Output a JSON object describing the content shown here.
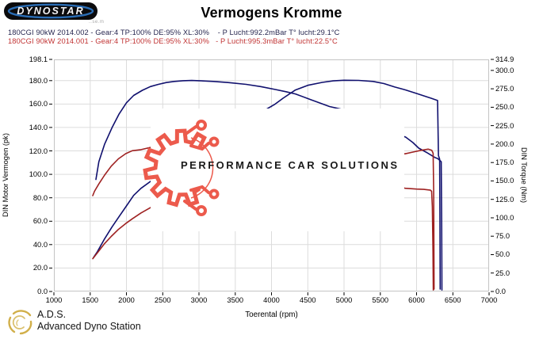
{
  "header": {
    "logo_text": "DYNOSTAR",
    "fine_print": "..se.m",
    "title": "Vermogens Kromme"
  },
  "legend": {
    "run1": "180CGI 90kW 2014.002 - Gear:4 TP:100% DE:95% XL:30%    - P Lucht:992.2mBar T° lucht:29.1°C",
    "run2": "180CGI 90kW 2014.001 - Gear:4 TP:100% DE:95% XL:30%   - P Lucht:995.3mBar T° lucht:22.5°C",
    "run1_color": "#26264f",
    "run2_color": "#c13434"
  },
  "watermark": {
    "text": "PERFORMANCE CAR SOLUTIONS",
    "gear_color": "#ec5a4c",
    "text_color": "#1a1a1a"
  },
  "footer": {
    "abbr": "A.D.S.",
    "name": "Advanced Dyno Station",
    "logo_color": "#c9a22b"
  },
  "chart_data": {
    "type": "line",
    "title": "Vermogens Kromme",
    "xlabel": "Toerental (rpm)",
    "ylabel_left": "DIN Motor Vermogen (pk)",
    "ylabel_right": "DIN Torque (Nm)",
    "xlim": [
      1000,
      7000
    ],
    "ylim_left": [
      0,
      198.1
    ],
    "ylim_right": [
      0,
      314.9
    ],
    "grid": true,
    "grid_color": "#dcdcdc",
    "x_ticks": [
      1000,
      1500,
      2000,
      2500,
      3000,
      3500,
      4000,
      4500,
      5000,
      5500,
      6000,
      6500,
      7000
    ],
    "y_left_ticks": [
      0,
      20,
      40,
      60,
      80,
      100,
      120,
      140,
      160,
      180,
      198.1
    ],
    "y_right_ticks": [
      0,
      25,
      50,
      75,
      100,
      125,
      150,
      175,
      200,
      225,
      250,
      275,
      300,
      314.9
    ],
    "series": [
      {
        "name": "power 2014.002 (pk)",
        "axis": "left",
        "color": "#10106e",
        "points": [
          [
            1546,
            29
          ],
          [
            1600,
            34
          ],
          [
            1700,
            45
          ],
          [
            1800,
            55
          ],
          [
            1900,
            64
          ],
          [
            2000,
            73
          ],
          [
            2100,
            82
          ],
          [
            2200,
            88
          ],
          [
            2400,
            97
          ],
          [
            2600,
            106
          ],
          [
            2800,
            114
          ],
          [
            3000,
            122
          ],
          [
            3200,
            130
          ],
          [
            3400,
            138
          ],
          [
            3600,
            146
          ],
          [
            3800,
            152
          ],
          [
            3940,
            156
          ],
          [
            4050,
            160
          ],
          [
            4160,
            165
          ],
          [
            4330,
            172
          ],
          [
            4500,
            176
          ],
          [
            4700,
            178.5
          ],
          [
            4850,
            179.8
          ],
          [
            5000,
            180.3
          ],
          [
            5200,
            180.2
          ],
          [
            5400,
            179.3
          ],
          [
            5550,
            177.5
          ],
          [
            5700,
            174.5
          ],
          [
            5850,
            172
          ],
          [
            6000,
            169
          ],
          [
            6100,
            167
          ],
          [
            6200,
            165
          ],
          [
            6290,
            163
          ],
          [
            6298,
            130
          ],
          [
            6302,
            116
          ],
          [
            6318,
            113
          ],
          [
            6322,
            60
          ],
          [
            6326,
            2
          ]
        ]
      },
      {
        "name": "torque 2014.002 (Nm)",
        "axis": "right",
        "color": "#10106e",
        "points": [
          [
            1579,
            152
          ],
          [
            1620,
            176
          ],
          [
            1700,
            200
          ],
          [
            1800,
            222
          ],
          [
            1900,
            241
          ],
          [
            2000,
            256
          ],
          [
            2100,
            266
          ],
          [
            2220,
            273
          ],
          [
            2330,
            278
          ],
          [
            2440,
            281
          ],
          [
            2550,
            283.5
          ],
          [
            2660,
            285
          ],
          [
            2780,
            286
          ],
          [
            2900,
            286.3
          ],
          [
            3000,
            286
          ],
          [
            3200,
            285
          ],
          [
            3400,
            283.5
          ],
          [
            3650,
            281
          ],
          [
            3850,
            278
          ],
          [
            4060,
            274
          ],
          [
            4200,
            271
          ],
          [
            4330,
            268
          ],
          [
            4550,
            260
          ],
          [
            4800,
            251
          ],
          [
            4978,
            247
          ],
          [
            5150,
            240
          ],
          [
            5350,
            230
          ],
          [
            5550,
            221
          ],
          [
            5750,
            213
          ],
          [
            5850,
            209.5
          ],
          [
            5950,
            202
          ],
          [
            6030,
            194.5
          ],
          [
            6150,
            188
          ],
          [
            6250,
            182
          ],
          [
            6290,
            180.5
          ],
          [
            6320,
            178
          ],
          [
            6340,
            176
          ],
          [
            6346,
            90
          ],
          [
            6350,
            2
          ]
        ]
      },
      {
        "name": "power 2014.001 (pk)",
        "axis": "left",
        "color": "#9e2121",
        "points": [
          [
            1536,
            28
          ],
          [
            1612,
            34
          ],
          [
            1700,
            41
          ],
          [
            1790,
            47
          ],
          [
            1890,
            53
          ],
          [
            1990,
            58
          ],
          [
            2080,
            62
          ],
          [
            2200,
            67
          ],
          [
            2400,
            74
          ],
          [
            2700,
            84
          ],
          [
            3000,
            93
          ],
          [
            3300,
            101
          ],
          [
            3600,
            108
          ],
          [
            3900,
            113
          ],
          [
            4200,
            116
          ],
          [
            4500,
            117
          ],
          [
            4800,
            117.5
          ],
          [
            5100,
            118
          ],
          [
            5400,
            118
          ],
          [
            5600,
            117.5
          ],
          [
            5841,
            117.5
          ],
          [
            5950,
            119
          ],
          [
            6060,
            120.5
          ],
          [
            6160,
            121.5
          ],
          [
            6210,
            120.5
          ],
          [
            6228,
            118
          ],
          [
            6236,
            85
          ],
          [
            6242,
            2
          ]
        ]
      },
      {
        "name": "torque 2014.001 (Nm)",
        "axis": "right",
        "color": "#9e2121",
        "points": [
          [
            1536,
            130
          ],
          [
            1560,
            136
          ],
          [
            1620,
            146
          ],
          [
            1700,
            158
          ],
          [
            1790,
            170
          ],
          [
            1890,
            180
          ],
          [
            1990,
            187
          ],
          [
            2080,
            191
          ],
          [
            2202,
            192.5
          ],
          [
            2400,
            197
          ],
          [
            2700,
            202
          ],
          [
            3000,
            204
          ],
          [
            3300,
            205
          ],
          [
            3600,
            204
          ],
          [
            3900,
            200
          ],
          [
            4200,
            194
          ],
          [
            4500,
            183
          ],
          [
            4800,
            172
          ],
          [
            5100,
            163
          ],
          [
            5400,
            153
          ],
          [
            5600,
            147
          ],
          [
            5841,
            140
          ],
          [
            6000,
            139
          ],
          [
            6100,
            138.5
          ],
          [
            6191,
            137.5
          ],
          [
            6208,
            136
          ],
          [
            6218,
            115
          ],
          [
            6226,
            55
          ],
          [
            6231,
            2
          ]
        ]
      }
    ]
  }
}
